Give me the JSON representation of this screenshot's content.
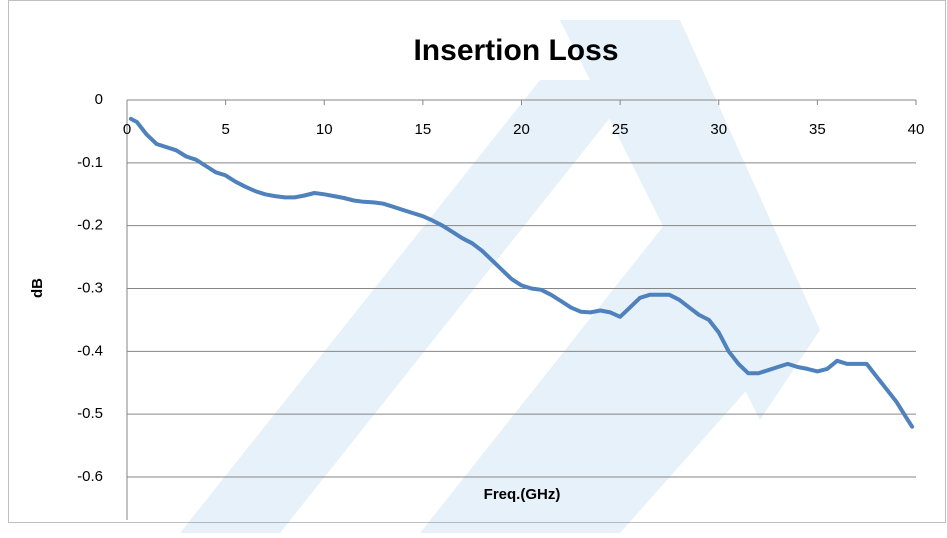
{
  "chart_data": {
    "type": "line",
    "title": "Insertion Loss",
    "x_label": "Freq.(GHz)",
    "y_label": "dB",
    "x": [
      0.2,
      0.5,
      1,
      1.5,
      2,
      2.5,
      3,
      3.5,
      4,
      4.5,
      5,
      5.5,
      6,
      6.5,
      7,
      7.5,
      8,
      8.5,
      9,
      9.5,
      10,
      10.5,
      11,
      11.5,
      12,
      12.5,
      13,
      13.5,
      14,
      14.5,
      15,
      15.5,
      16,
      16.5,
      17,
      17.5,
      18,
      18.5,
      19,
      19.5,
      20,
      20.5,
      21,
      21.5,
      22,
      22.5,
      23,
      23.5,
      24,
      24.5,
      25,
      25.5,
      26,
      26.5,
      27,
      27.5,
      28,
      28.5,
      29,
      29.5,
      30,
      30.5,
      31,
      31.5,
      32,
      32.5,
      33,
      33.5,
      34,
      34.5,
      35,
      35.5,
      36,
      36.5,
      37,
      37.5,
      38,
      38.5,
      39,
      39.5,
      39.8
    ],
    "values": [
      -0.03,
      -0.035,
      -0.055,
      -0.07,
      -0.075,
      -0.08,
      -0.09,
      -0.095,
      -0.105,
      -0.115,
      -0.12,
      -0.13,
      -0.138,
      -0.145,
      -0.15,
      -0.153,
      -0.155,
      -0.155,
      -0.152,
      -0.148,
      -0.15,
      -0.153,
      -0.156,
      -0.16,
      -0.162,
      -0.163,
      -0.165,
      -0.17,
      -0.175,
      -0.18,
      -0.185,
      -0.192,
      -0.2,
      -0.21,
      -0.22,
      -0.228,
      -0.24,
      -0.255,
      -0.27,
      -0.285,
      -0.295,
      -0.3,
      -0.302,
      -0.31,
      -0.32,
      -0.33,
      -0.337,
      -0.338,
      -0.335,
      -0.338,
      -0.345,
      -0.33,
      -0.315,
      -0.31,
      -0.31,
      -0.31,
      -0.318,
      -0.33,
      -0.342,
      -0.35,
      -0.37,
      -0.4,
      -0.42,
      -0.435,
      -0.435,
      -0.43,
      -0.425,
      -0.42,
      -0.425,
      -0.428,
      -0.432,
      -0.428,
      -0.415,
      -0.42,
      -0.42,
      -0.42,
      -0.44,
      -0.46,
      -0.48,
      -0.505,
      -0.52
    ],
    "color": "#4f81bd",
    "xlim": [
      0,
      40
    ],
    "xticks": [
      0,
      5,
      10,
      15,
      20,
      25,
      30,
      35,
      40
    ],
    "ylim": [
      -0.6,
      0
    ],
    "yticks": [
      0,
      -0.1,
      -0.2,
      -0.3,
      -0.4,
      -0.5,
      -0.6
    ],
    "grid": true
  }
}
